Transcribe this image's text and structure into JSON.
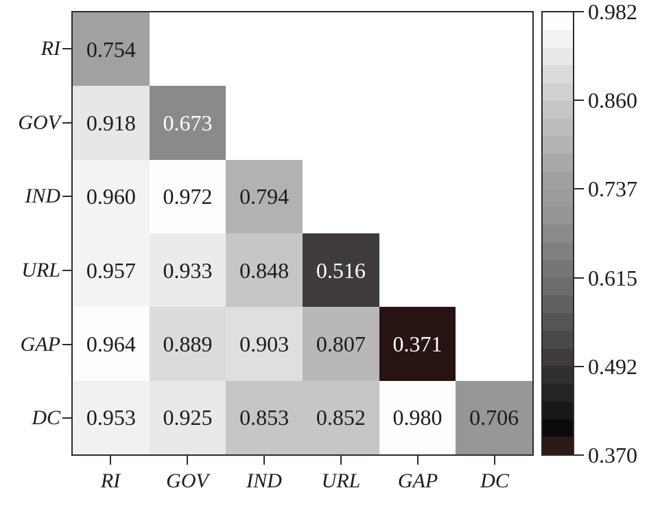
{
  "chart_data": {
    "type": "heatmap",
    "title": "",
    "xlabel": "",
    "ylabel": "",
    "categories": [
      "RI",
      "GOV",
      "IND",
      "URL",
      "GAP",
      "DC"
    ],
    "matrix": [
      [
        0.754,
        null,
        null,
        null,
        null,
        null
      ],
      [
        0.918,
        0.673,
        null,
        null,
        null,
        null
      ],
      [
        0.96,
        0.972,
        0.794,
        null,
        null,
        null
      ],
      [
        0.957,
        0.933,
        0.848,
        0.516,
        null,
        null
      ],
      [
        0.964,
        0.889,
        0.903,
        0.807,
        0.371,
        null
      ],
      [
        0.953,
        0.925,
        0.853,
        0.852,
        0.98,
        0.706
      ]
    ],
    "colorbar_ticks": [
      0.982,
      0.86,
      0.737,
      0.615,
      0.492,
      0.37
    ],
    "value_range": [
      0.37,
      0.982
    ],
    "colormap": "white-to-black grayscale, darkest step dark brown",
    "legend_position": "right",
    "grid": false
  },
  "heatmap": {
    "row_labels": [
      "RI",
      "GOV",
      "IND",
      "URL",
      "GAP",
      "DC"
    ],
    "col_labels": [
      "RI",
      "GOV",
      "IND",
      "URL",
      "GAP",
      "DC"
    ],
    "rows": [
      {
        "cells": [
          {
            "value": "0.754",
            "bg": "#a2a0a1",
            "fg": "#1c1c1c"
          }
        ]
      },
      {
        "cells": [
          {
            "value": "0.918",
            "bg": "#e8e6e7",
            "fg": "#1c1c1c"
          },
          {
            "value": "0.673",
            "bg": "#8b8989",
            "fg": "#ffffff"
          }
        ]
      },
      {
        "cells": [
          {
            "value": "0.960",
            "bg": "#f4f2f3",
            "fg": "#1c1c1c"
          },
          {
            "value": "0.972",
            "bg": "#fdfdfd",
            "fg": "#1c1c1c"
          },
          {
            "value": "0.794",
            "bg": "#b3b1b2",
            "fg": "#1c1c1c"
          }
        ]
      },
      {
        "cells": [
          {
            "value": "0.957",
            "bg": "#f4f2f3",
            "fg": "#1c1c1c"
          },
          {
            "value": "0.933",
            "bg": "#eceaeb",
            "fg": "#1c1c1c"
          },
          {
            "value": "0.848",
            "bg": "#c7c5c6",
            "fg": "#1c1c1c"
          },
          {
            "value": "0.516",
            "bg": "#3f3b3c",
            "fg": "#ffffff"
          }
        ]
      },
      {
        "cells": [
          {
            "value": "0.964",
            "bg": "#fdfdfd",
            "fg": "#1c1c1c"
          },
          {
            "value": "0.889",
            "bg": "#dcdadb",
            "fg": "#1c1c1c"
          },
          {
            "value": "0.903",
            "bg": "#e0dedf",
            "fg": "#1c1c1c"
          },
          {
            "value": "0.807",
            "bg": "#b9b7b8",
            "fg": "#1c1c1c"
          },
          {
            "value": "0.371",
            "bg": "#271312",
            "fg": "#ffffff"
          }
        ]
      },
      {
        "cells": [
          {
            "value": "0.953",
            "bg": "#f2f0f1",
            "fg": "#1c1c1c"
          },
          {
            "value": "0.925",
            "bg": "#eae8e9",
            "fg": "#1c1c1c"
          },
          {
            "value": "0.853",
            "bg": "#c7c5c6",
            "fg": "#1c1c1c"
          },
          {
            "value": "0.852",
            "bg": "#c7c5c6",
            "fg": "#1c1c1c"
          },
          {
            "value": "0.980",
            "bg": "#fefefe",
            "fg": "#1c1c1c"
          },
          {
            "value": "0.706",
            "bg": "#989697",
            "fg": "#1c1c1c"
          }
        ]
      }
    ]
  },
  "colorbar": {
    "tick_labels": [
      "0.982",
      "0.860",
      "0.737",
      "0.615",
      "0.492",
      "0.370"
    ],
    "steps": [
      "#fefefe",
      "#f3f1f2",
      "#e9e7e8",
      "#dcdadb",
      "#d2d0d1",
      "#c7c5c6",
      "#bcbabb",
      "#b5b3b4",
      "#aaa8a9",
      "#a1a0a0",
      "#9c9a9b",
      "#969495",
      "#8b8989",
      "#817f80",
      "#777576",
      "#6d6b6c",
      "#616061",
      "#565455",
      "#4a4849",
      "#3f3b3c",
      "#322f30",
      "#262324",
      "#1a1718",
      "#0d0a0b",
      "#2b1a15"
    ]
  }
}
